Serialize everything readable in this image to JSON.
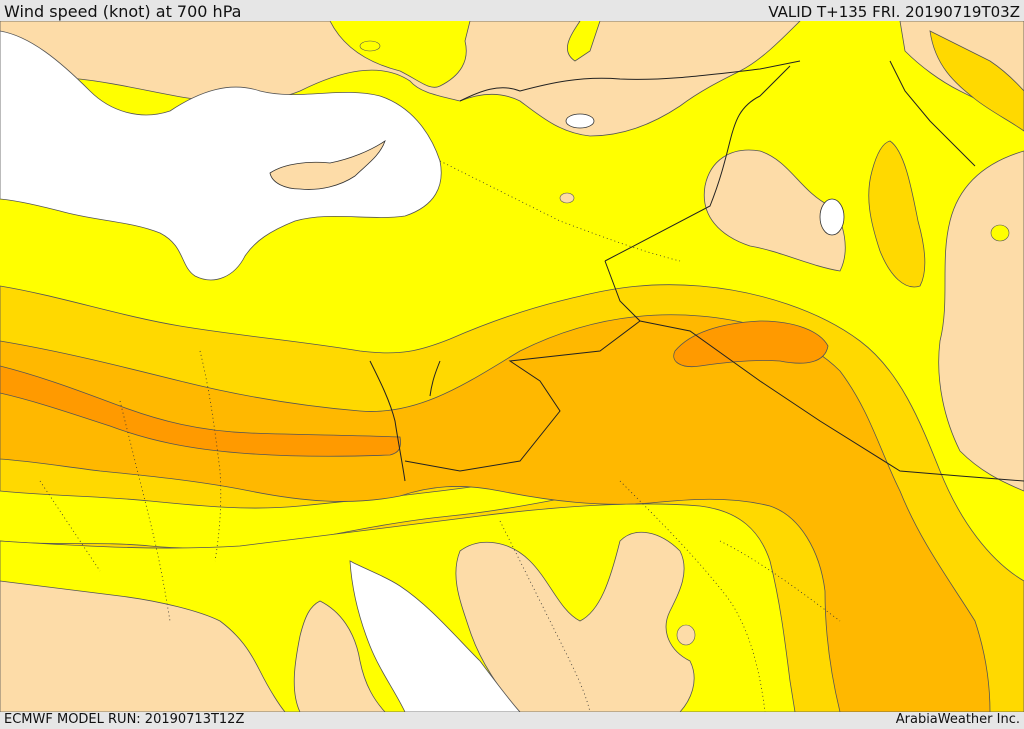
{
  "header": {
    "title": "Wind speed (knot) at 700 hPa",
    "valid": "VALID T+135 FRI. 20190719T03Z"
  },
  "footer": {
    "model_run": "ECMWF MODEL RUN: 20190713T12Z",
    "credit": "ArabiaWeather Inc."
  },
  "colors": {
    "sea": "#ffffff",
    "band_light": "#fddca8",
    "band_yellow": "#ffff00",
    "band_gold": "#ffd900",
    "band_amber": "#ffb800",
    "band_orange": "#ff9a00",
    "contour": "#555555",
    "border": "#222222"
  }
}
